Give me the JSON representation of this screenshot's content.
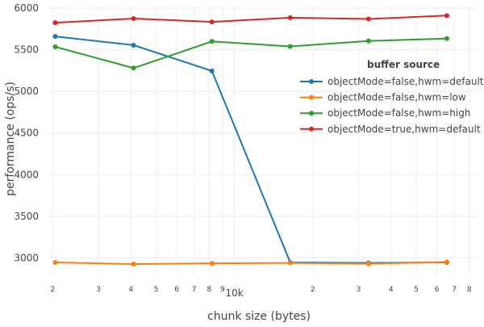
{
  "chart_data": {
    "type": "line",
    "title": "",
    "xlabel": "chunk size (bytes)",
    "ylabel": "performance (ops/s)",
    "x_scale": "log",
    "x_range": [
      1900,
      86000
    ],
    "ylim": [
      2800,
      6020
    ],
    "y_ticks": [
      3000,
      3500,
      4000,
      4500,
      5000,
      5500,
      6000
    ],
    "x_ticks": [
      {
        "value": 2000,
        "label": "2",
        "major": false
      },
      {
        "value": 3000,
        "label": "3",
        "major": false
      },
      {
        "value": 4000,
        "label": "4",
        "major": false
      },
      {
        "value": 5000,
        "label": "5",
        "major": false
      },
      {
        "value": 6000,
        "label": "6",
        "major": false
      },
      {
        "value": 7000,
        "label": "7",
        "major": false
      },
      {
        "value": 8000,
        "label": "8",
        "major": false
      },
      {
        "value": 9000,
        "label": "9",
        "major": false
      },
      {
        "value": 10000,
        "label": "10k",
        "major": true
      },
      {
        "value": 20000,
        "label": "2",
        "major": false
      },
      {
        "value": 30000,
        "label": "3",
        "major": false
      },
      {
        "value": 40000,
        "label": "4",
        "major": false
      },
      {
        "value": 50000,
        "label": "5",
        "major": false
      },
      {
        "value": 60000,
        "label": "6",
        "major": false
      },
      {
        "value": 70000,
        "label": "7",
        "major": false
      },
      {
        "value": 80000,
        "label": "8",
        "major": false
      }
    ],
    "grid": true,
    "legend_title": "buffer source",
    "legend_position": "top-right",
    "x": [
      2048,
      4096,
      8192,
      16384,
      32768,
      65536
    ],
    "series": [
      {
        "name": "objectMode=false,hwm=default",
        "color": "#1f77b4",
        "values": [
          5660,
          5555,
          5245,
          2945,
          2940,
          2945
        ]
      },
      {
        "name": "objectMode=false,hwm=low",
        "color": "#ff7f0e",
        "values": [
          2945,
          2925,
          2935,
          2940,
          2930,
          2950
        ]
      },
      {
        "name": "objectMode=false,hwm=high",
        "color": "#2ca02c",
        "values": [
          5535,
          5280,
          5600,
          5540,
          5605,
          5635
        ]
      },
      {
        "name": "objectMode=true,hwm=default",
        "color": "#d62728",
        "values": [
          5825,
          5875,
          5835,
          5885,
          5870,
          5910
        ]
      }
    ]
  }
}
